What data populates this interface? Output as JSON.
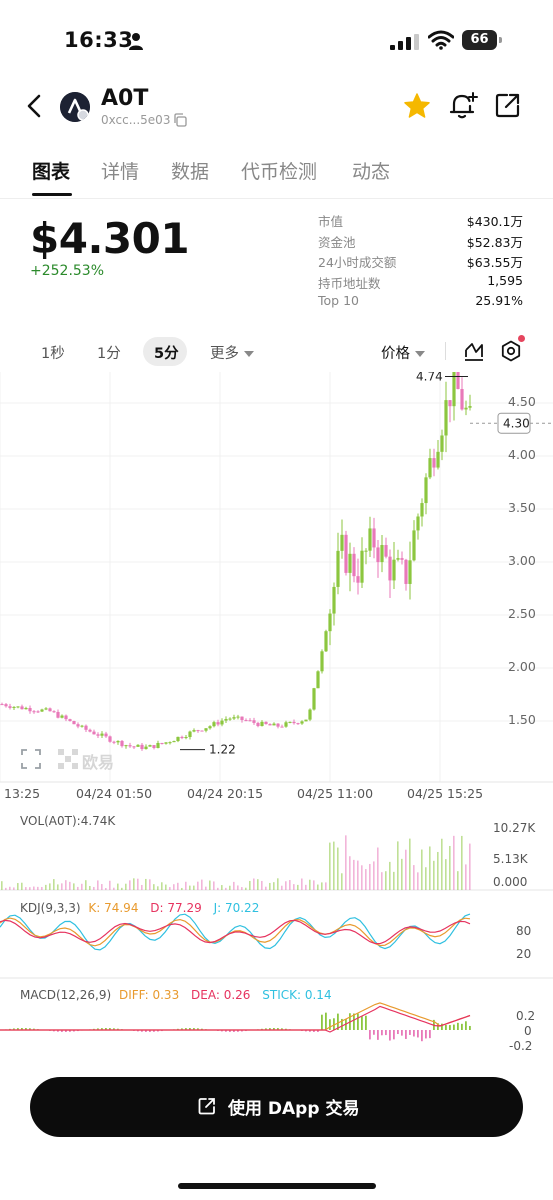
{
  "status_bar": {
    "time": "16:33",
    "battery": "66"
  },
  "header": {
    "token_name": "A0T",
    "token_address": "0xcc...5e03"
  },
  "tabs": [
    {
      "label": "图表",
      "active": true
    },
    {
      "label": "详情",
      "active": false
    },
    {
      "label": "数据",
      "active": false
    },
    {
      "label": "代币检测",
      "active": false
    },
    {
      "label": "动态",
      "active": false
    }
  ],
  "price": {
    "value": "$4.301",
    "change": "+252.53%",
    "change_color": "#2b8a2b"
  },
  "stats": [
    {
      "label": "市值",
      "value": "$430.1万"
    },
    {
      "label": "资金池",
      "value": "$52.83万"
    },
    {
      "label": "24小时成交额",
      "value": "$63.55万"
    },
    {
      "label": "持币地址数",
      "value": "1,595"
    },
    {
      "label": "Top 10",
      "value": "25.91%"
    }
  ],
  "timeframes": {
    "items": [
      "1秒",
      "1分",
      "5分",
      "更多"
    ],
    "active": "5分",
    "price_mode": "价格"
  },
  "chart_data": {
    "type": "candlestick",
    "y_axis_ticks": [
      "4.50",
      "4.00",
      "3.50",
      "3.00",
      "2.50",
      "2.00",
      "1.50"
    ],
    "ylim": [
      1.0,
      4.8
    ],
    "x_axis_labels": [
      "13:25",
      "04/24 01:50",
      "04/24 20:15",
      "04/25 11:00",
      "04/25 15:25"
    ],
    "max_marker": "4.74",
    "min_marker": "1.22",
    "current_price_label": "4.30",
    "watermark": "欧易",
    "up_color": "#8cc63f",
    "down_color": "#e879b9",
    "series_close_approx": [
      1.65,
      1.62,
      1.6,
      1.58,
      1.5,
      1.42,
      1.36,
      1.3,
      1.25,
      1.24,
      1.28,
      1.34,
      1.4,
      1.45,
      1.52,
      1.5,
      1.46,
      1.44,
      1.47,
      1.52,
      2.3,
      3.1,
      2.9,
      3.2,
      2.95,
      2.85,
      3.6,
      4.2,
      4.7,
      4.3
    ]
  },
  "volume": {
    "title": "VOL(A0T):4.74K",
    "ticks": [
      "10.27K",
      "5.13K",
      "0.000"
    ]
  },
  "kdj": {
    "title": "KDJ(9,3,3)",
    "k": "K: 74.94",
    "d": "D: 77.29",
    "j": "J: 70.22",
    "ticks": [
      "80",
      "20"
    ],
    "k_color": "#e89a2e",
    "d_color": "#e6335f",
    "j_color": "#30c0e0"
  },
  "macd": {
    "title": "MACD(12,26,9)",
    "diff": "DIFF: 0.33",
    "dea": "DEA: 0.26",
    "stick": "STICK: 0.14",
    "ticks": [
      "0.2",
      "0",
      "-0.2"
    ],
    "diff_color": "#e89a2e",
    "dea_color": "#e6335f",
    "stick_color": "#30c0e0"
  },
  "cta": {
    "label": "使用 DApp 交易"
  }
}
